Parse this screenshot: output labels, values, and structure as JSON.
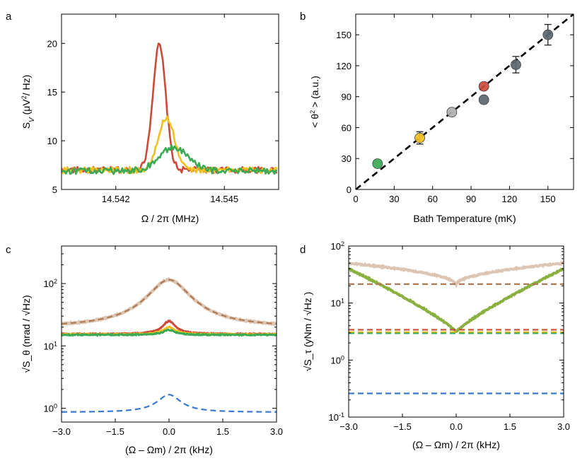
{
  "colors": {
    "red": "#cc4a3a",
    "yellow": "#f0c020",
    "green": "#3aaa55",
    "light_brown": "#dcc5b2",
    "brown_dashed": "#b07a55",
    "blue_dashed": "#3a78d0",
    "gray_marker": "#5c6770",
    "lightgray_marker": "#b0b0b0",
    "olive_line": "#8ab040"
  },
  "chart_data": [
    {
      "panel": "a",
      "type": "line",
      "xlabel": "Ω / 2π (MHz)",
      "ylabel": "S_V (μV²/ Hz)",
      "ylabel_parts": [
        "S",
        "V",
        " (μV",
        "2",
        "/ Hz)"
      ],
      "xlim": [
        14.5405,
        14.5465
      ],
      "ylim": [
        5,
        23
      ],
      "xticks": [
        14.542,
        14.545
      ],
      "xtick_labels": [
        "14.542",
        "14.545"
      ],
      "yticks": [
        5,
        10,
        15,
        20
      ],
      "series": [
        {
          "color": "red",
          "baseline": 7.0,
          "noise": 0.32,
          "peaks": [
            {
              "center": 14.5432,
              "height": 12.8,
              "width": 0.00018
            }
          ]
        },
        {
          "color": "yellow",
          "baseline": 7.0,
          "noise": 0.32,
          "peaks": [
            {
              "center": 14.5434,
              "height": 5.4,
              "width": 0.00022
            }
          ]
        },
        {
          "color": "green",
          "baseline": 6.9,
          "noise": 0.32,
          "peaks": [
            {
              "center": 14.5436,
              "height": 2.4,
              "width": 0.0004
            }
          ]
        }
      ]
    },
    {
      "panel": "b",
      "type": "scatter",
      "xlabel": "Bath Temperature (mK)",
      "ylabel": "< θ² > (a.u.)",
      "ylabel_parts": [
        "< θ",
        "2",
        " > (a.u.)"
      ],
      "xlim": [
        0,
        170
      ],
      "ylim": [
        0,
        170
      ],
      "xticks": [
        0,
        30,
        60,
        90,
        120,
        150
      ],
      "yticks": [
        0,
        30,
        60,
        90,
        120,
        150
      ],
      "points": [
        {
          "x": 17,
          "y": 25,
          "err": 0,
          "color": "green"
        },
        {
          "x": 50,
          "y": 50,
          "err": 6,
          "color": "yellow"
        },
        {
          "x": 75,
          "y": 75,
          "err": 0,
          "color": "lightgray_marker"
        },
        {
          "x": 100,
          "y": 100,
          "err": 0,
          "color": "red"
        },
        {
          "x": 100,
          "y": 87,
          "err": 0,
          "color": "gray_marker"
        },
        {
          "x": 125,
          "y": 121,
          "err": 8,
          "color": "gray_marker"
        },
        {
          "x": 150,
          "y": 150,
          "err": 10,
          "color": "gray_marker"
        }
      ],
      "fit_line": {
        "x": [
          0,
          170
        ],
        "y": [
          0,
          170
        ],
        "style": "dashed"
      }
    },
    {
      "panel": "c",
      "type": "line",
      "xlabel": "(Ω – Ωm) / 2π (kHz)",
      "ylabel": "√S_θ (nrad / √Hz)",
      "xlim": [
        -3,
        3
      ],
      "yscale": "log",
      "ylim": [
        0.6,
        400
      ],
      "xticks": [
        -3,
        -1.5,
        0,
        1.5,
        3
      ],
      "xtick_labels": [
        "−3.0",
        "−1.5",
        "0.0",
        "1.5",
        "3.0"
      ],
      "yticks": [
        1,
        10,
        100
      ],
      "ytick_labels": [
        "10",
        "10",
        "10"
      ],
      "ytick_exps": [
        "0",
        "1",
        "2"
      ],
      "series": [
        {
          "color": "light_brown",
          "style": "solid",
          "base": 19.5,
          "peak": 115,
          "gamma": 0.55
        },
        {
          "color": "brown_dashed",
          "style": "dashed",
          "base": 19.5,
          "peak": 115,
          "gamma": 0.55
        },
        {
          "color": "red",
          "style": "solid",
          "base": 15.5,
          "peak": 25,
          "gamma": 0.2
        },
        {
          "color": "yellow",
          "style": "solid",
          "base": 15.3,
          "peak": 20,
          "gamma": 0.2
        },
        {
          "color": "green",
          "style": "solid",
          "base": 15.0,
          "peak": 18,
          "gamma": 0.2
        },
        {
          "color": "blue_dashed",
          "style": "dashed",
          "base": 0.86,
          "peak": 1.65,
          "gamma": 0.35
        }
      ]
    },
    {
      "panel": "d",
      "type": "line",
      "xlabel": "(Ω – Ωm) / 2π (kHz)",
      "ylabel": "√S_τ (yNm / √Hz )",
      "xlim": [
        -3,
        3
      ],
      "yscale": "log",
      "ylim": [
        0.1,
        100
      ],
      "xticks": [
        -3,
        -1.5,
        0,
        1.5,
        3
      ],
      "xtick_labels": [
        "−3.0",
        "−1.5",
        "0.0",
        "1.5",
        "3.0"
      ],
      "yticks": [
        0.1,
        1,
        10,
        100
      ],
      "ytick_labels": [
        "10",
        "10",
        "10",
        "10"
      ],
      "ytick_exps": [
        "-1",
        "0",
        "1",
        "2"
      ],
      "series": [
        {
          "color": "light_brown",
          "style": "solid",
          "kind": "vshape",
          "floor": 21,
          "edge": 50,
          "exponent": 2.0
        },
        {
          "color": "olive_line",
          "style": "solid",
          "kind": "vshape",
          "floor": 3.1,
          "edge": 40,
          "exponent": 1.2
        },
        {
          "color": "brown_dashed",
          "style": "dashed",
          "kind": "flat",
          "level": 21.5
        },
        {
          "color": "red",
          "style": "dashed",
          "kind": "flat",
          "level": 3.4
        },
        {
          "color": "yellow",
          "style": "dashed",
          "kind": "flat",
          "level": 3.1
        },
        {
          "color": "green",
          "style": "dashed",
          "kind": "flat",
          "level": 2.95
        },
        {
          "color": "blue_dashed",
          "style": "dashed",
          "kind": "flat",
          "level": 0.26
        }
      ]
    }
  ]
}
